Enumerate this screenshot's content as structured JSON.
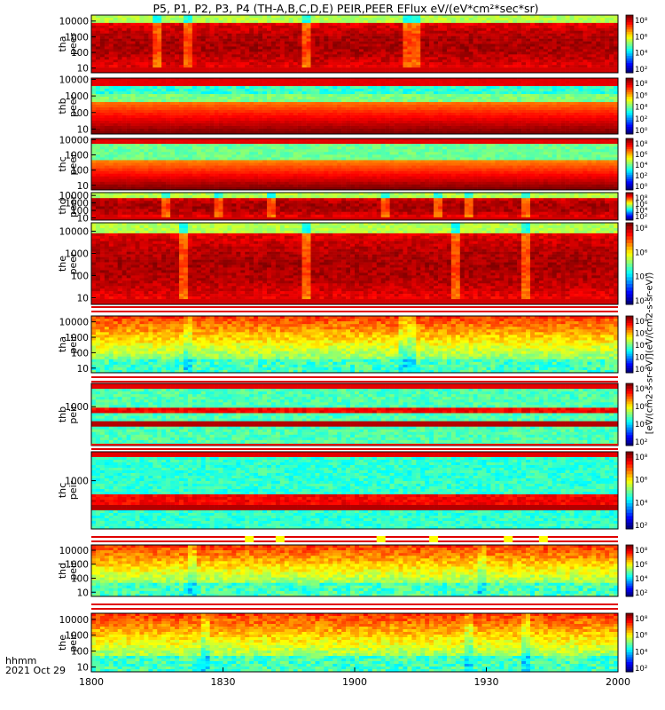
{
  "title": "P5, P1, P2, P3, P4 (TH-A,B,C,D,E) PEIR,PEER EFlux eV/(eV*cm²*sec*sr)",
  "footer": {
    "time_label": "hhmm",
    "date_label": "2021 Oct 29"
  },
  "colorbar_label": "[eV/(cm2-s-sr-eV)](eV/(cm2-s-sr-eV))",
  "chart_data": {
    "type": "heatmap",
    "x_tick_labels": [
      "1800",
      "1830",
      "1900",
      "1930",
      "2000"
    ],
    "x_range": [
      "1800",
      "2000"
    ],
    "panels": [
      {
        "label1": "tha",
        "label2": "peer",
        "yticks": [
          "10000",
          "1000",
          "100",
          "10"
        ],
        "ylog": [
          5,
          24000
        ],
        "colorbar_ticks": [
          "10⁸",
          "10⁶",
          "10⁴",
          "10²"
        ],
        "pattern": "high",
        "dips": [
          1815,
          1822,
          1849,
          1874,
          1912,
          1913,
          1984
        ]
      },
      {
        "label1": "thb",
        "label2": "peer",
        "yticks": [
          "10000",
          "1000",
          "100",
          "10"
        ],
        "ylog": [
          5,
          12000
        ],
        "colorbar_ticks": [
          "10⁸",
          "10⁶",
          "10⁴",
          "10²",
          "10⁰"
        ],
        "pattern": "bands_b",
        "dips": []
      },
      {
        "label1": "thc",
        "label2": "peer",
        "yticks": [
          "10000",
          "1000",
          "100",
          "10"
        ],
        "ylog": [
          5,
          12000
        ],
        "colorbar_ticks": [
          "10⁸",
          "10⁶",
          "10⁴",
          "10²",
          "10⁰"
        ],
        "pattern": "bands_c",
        "dips": []
      },
      {
        "label1": "thd",
        "label2": "peer",
        "yticks": [
          "10000",
          "1000",
          "100",
          "10"
        ],
        "ylog": [
          5,
          24000
        ],
        "colorbar_ticks": [
          "10⁸",
          "10⁶",
          "10⁴",
          "10²"
        ],
        "pattern": "high",
        "dips": [
          1817,
          1829,
          1841,
          1879,
          1899,
          1907,
          1926
        ]
      },
      {
        "label1": "the",
        "label2": "peer",
        "yticks": [
          "10000",
          "1000",
          "100",
          "10"
        ],
        "ylog": [
          5,
          24000
        ],
        "colorbar_ticks": [
          "10⁸",
          "10⁶",
          "10⁴",
          "10²"
        ],
        "pattern": "high",
        "dips": [
          1821,
          1849,
          1899,
          1923
        ]
      },
      {
        "label1": "tha",
        "label2": "peir",
        "yticks": [
          "10000",
          "1000",
          "100",
          "10"
        ],
        "ylog": [
          5,
          24000
        ],
        "colorbar_ticks": [
          "10⁸",
          "10⁶",
          "10⁴",
          "10²",
          "10⁰"
        ],
        "pattern": "ion",
        "dips": [
          1822,
          1871,
          1913
        ]
      },
      {
        "label1": "thb",
        "label2": "peir",
        "yticks": [
          "1000"
        ],
        "ylog": [
          5,
          24000
        ],
        "colorbar_ticks": [
          "10⁸",
          "10⁶",
          "10⁴",
          "10²"
        ],
        "pattern": "ionband_b",
        "dips": []
      },
      {
        "label1": "thc",
        "label2": "peir",
        "yticks": [
          "1000"
        ],
        "ylog": [
          5,
          24000
        ],
        "colorbar_ticks": [
          "10⁸",
          "10⁶",
          "10⁴",
          "10²"
        ],
        "pattern": "ionband_c",
        "dips": []
      },
      {
        "label1": "thd",
        "label2": "peir",
        "yticks": [
          "10000",
          "1000",
          "100",
          "10"
        ],
        "ylog": [
          5,
          24000
        ],
        "colorbar_ticks": [
          "10⁸",
          "10⁶",
          "10⁴",
          "10²"
        ],
        "pattern": "ion",
        "dips": [
          1823,
          1889
        ]
      },
      {
        "label1": "the",
        "label2": "peir",
        "yticks": [
          "10000",
          "1000",
          "100",
          "10"
        ],
        "ylog": [
          5,
          24000
        ],
        "colorbar_ticks": [
          "10⁸",
          "10⁶",
          "10⁴",
          "10²"
        ],
        "pattern": "ion",
        "dips": [
          1826,
          1899,
          1926
        ]
      }
    ],
    "flags": [
      {
        "after_panel": 5,
        "yellow_marks": []
      },
      {
        "after_panel": 6,
        "yellow_marks": []
      },
      {
        "after_panel": 7,
        "yellow_marks": [
          1836,
          1843,
          1866,
          1918,
          1935,
          1943
        ]
      },
      {
        "after_panel": 8,
        "yellow_marks": []
      }
    ]
  }
}
